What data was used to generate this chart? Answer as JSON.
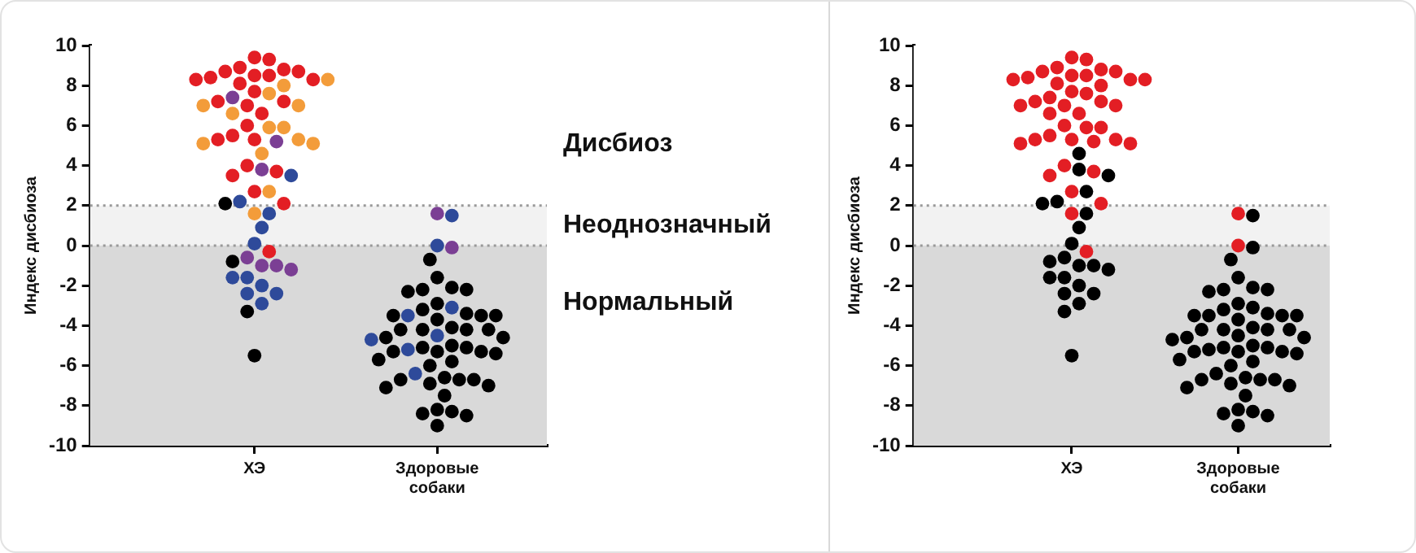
{
  "chart_data": [
    {
      "type": "scatter",
      "ylabel": "Индекс дисбиоза",
      "categories": [
        "ХЭ",
        "Здоровые собаки"
      ],
      "ylim": [
        -10,
        10
      ],
      "yticks": [
        -10,
        -8,
        -6,
        -4,
        -2,
        0,
        2,
        4,
        6,
        8,
        10
      ],
      "marker": "circle",
      "bands": [
        {
          "axis": "y",
          "from": 2,
          "to": 10,
          "label": "Дисбиоз",
          "color": "#ffffff"
        },
        {
          "axis": "y",
          "from": 0,
          "to": 2,
          "label": "Неоднозначный",
          "color": "#f2f2f2"
        },
        {
          "axis": "y",
          "from": -10,
          "to": 0,
          "label": "Нормальный",
          "color": "#d9d9d9"
        }
      ],
      "ref_lines": [
        {
          "axis": "y",
          "value": 2,
          "color": "#999999",
          "line_style": "dotted"
        },
        {
          "axis": "y",
          "value": 0,
          "color": "#999999",
          "line_style": "dotted"
        }
      ],
      "series": [
        {
          "color": "#e31e24",
          "x": [
            "ХЭ",
            "ХЭ",
            "ХЭ",
            "ХЭ",
            "ХЭ",
            "ХЭ",
            "ХЭ",
            "ХЭ",
            "ХЭ",
            "ХЭ",
            "ХЭ",
            "ХЭ",
            "ХЭ",
            "ХЭ",
            "ХЭ",
            "ХЭ",
            "ХЭ",
            "ХЭ",
            "ХЭ",
            "ХЭ",
            "ХЭ",
            "ХЭ",
            "ХЭ",
            "ХЭ",
            "ХЭ",
            "ХЭ",
            "ХЭ"
          ],
          "values": [
            8.9,
            9.4,
            9.3,
            8.8,
            8.7,
            8.7,
            8.3,
            8.3,
            8.5,
            8.5,
            8.4,
            8.1,
            7.7,
            7.2,
            7.2,
            7.0,
            6.6,
            6.0,
            5.3,
            5.5,
            5.3,
            3.7,
            3.5,
            4.0,
            2.7,
            2.1,
            -0.3
          ]
        },
        {
          "color": "#f39c3a",
          "x": [
            "ХЭ",
            "ХЭ",
            "ХЭ",
            "ХЭ",
            "ХЭ",
            "ХЭ",
            "ХЭ",
            "ХЭ",
            "ХЭ",
            "ХЭ",
            "ХЭ",
            "ХЭ",
            "ХЭ",
            "ХЭ"
          ],
          "values": [
            8.3,
            8.0,
            7.6,
            7.0,
            7.0,
            6.6,
            5.9,
            5.9,
            5.1,
            5.3,
            5.1,
            4.6,
            2.7,
            1.6
          ]
        },
        {
          "color": "#7b3f94",
          "x": [
            "ХЭ",
            "ХЭ",
            "ХЭ",
            "ХЭ",
            "ХЭ",
            "ХЭ",
            "ХЭ",
            "Здоровые собаки",
            "Здоровые собаки"
          ],
          "values": [
            7.4,
            5.2,
            3.8,
            -0.6,
            -1.0,
            -1.0,
            -1.2,
            1.6,
            -0.1
          ]
        },
        {
          "color": "#2e4a9a",
          "x": [
            "ХЭ",
            "ХЭ",
            "ХЭ",
            "ХЭ",
            "ХЭ",
            "ХЭ",
            "ХЭ",
            "ХЭ",
            "ХЭ",
            "ХЭ",
            "ХЭ",
            "Здоровые собаки",
            "Здоровые собаки",
            "Здоровые собаки",
            "Здоровые собаки",
            "Здоровые собаки",
            "Здоровые собаки",
            "Здоровые собаки",
            "Здоровые собаки"
          ],
          "values": [
            3.5,
            2.2,
            1.6,
            0.9,
            0.1,
            -1.6,
            -1.6,
            -2.0,
            -2.4,
            -2.4,
            -2.9,
            1.5,
            0.0,
            -3.1,
            -3.5,
            -4.5,
            -4.7,
            -5.2,
            -6.4
          ]
        },
        {
          "color": "#000000",
          "x": [
            "ХЭ",
            "ХЭ",
            "ХЭ",
            "ХЭ",
            "Здоровые собаки",
            "Здоровые собаки",
            "Здоровые собаки",
            "Здоровые собаки",
            "Здоровые собаки",
            "Здоровые собаки",
            "Здоровые собаки",
            "Здоровые собаки",
            "Здоровые собаки",
            "Здоровые собаки",
            "Здоровые собаки",
            "Здоровые собаки",
            "Здоровые собаки",
            "Здоровые собаки",
            "Здоровые собаки",
            "Здоровые собаки",
            "Здоровые собаки",
            "Здоровые собаки",
            "Здоровые собаки",
            "Здоровые собаки",
            "Здоровые собаки",
            "Здоровые собаки",
            "Здоровые собаки",
            "Здоровые собаки",
            "Здоровые собаки",
            "Здоровые собаки",
            "Здоровые собаки",
            "Здоровые собаки",
            "Здоровые собаки",
            "Здоровые собаки",
            "Здоровые собаки",
            "Здоровые собаки",
            "Здоровые собаки",
            "Здоровые собаки",
            "Здоровые собаки",
            "Здоровые собаки",
            "Здоровые собаки",
            "Здоровые собаки",
            "Здоровые собаки",
            "Здоровые собаки",
            "Здоровые собаки",
            "Здоровые собаки",
            "Здоровые собаки"
          ],
          "values": [
            2.1,
            -0.8,
            -3.3,
            -5.5,
            -0.7,
            -1.6,
            -2.1,
            -2.2,
            -2.2,
            -2.3,
            -2.9,
            -3.2,
            -3.4,
            -3.5,
            -3.5,
            -3.5,
            -3.7,
            -4.1,
            -4.2,
            -4.2,
            -4.2,
            -4.2,
            -4.6,
            -4.6,
            -5.0,
            -5.1,
            -5.1,
            -5.3,
            -5.3,
            -5.3,
            -5.4,
            -5.7,
            -5.8,
            -6.0,
            -6.6,
            -6.7,
            -6.7,
            -6.7,
            -6.9,
            -7.0,
            -7.1,
            -7.5,
            -8.2,
            -8.3,
            -8.4,
            -8.5,
            -9.0
          ]
        }
      ]
    },
    {
      "type": "scatter",
      "ylabel": "Индекс дисбиоза",
      "categories": [
        "ХЭ",
        "Здоровые собаки"
      ],
      "ylim": [
        -10,
        10
      ],
      "yticks": [
        -10,
        -8,
        -6,
        -4,
        -2,
        0,
        2,
        4,
        6,
        8,
        10
      ],
      "marker": "circle",
      "bands": [
        {
          "axis": "y",
          "from": 2,
          "to": 10,
          "color": "#ffffff"
        },
        {
          "axis": "y",
          "from": 0,
          "to": 2,
          "color": "#f2f2f2"
        },
        {
          "axis": "y",
          "from": -10,
          "to": 0,
          "color": "#d9d9d9"
        }
      ],
      "ref_lines": [
        {
          "axis": "y",
          "value": 2,
          "color": "#999999",
          "line_style": "dotted"
        },
        {
          "axis": "y",
          "value": 0,
          "color": "#999999",
          "line_style": "dotted"
        }
      ],
      "series": [
        {
          "color": "#e31e24",
          "x": [
            "ХЭ",
            "ХЭ",
            "ХЭ",
            "ХЭ",
            "ХЭ",
            "ХЭ",
            "ХЭ",
            "ХЭ",
            "ХЭ",
            "ХЭ",
            "ХЭ",
            "ХЭ",
            "ХЭ",
            "ХЭ",
            "ХЭ",
            "ХЭ",
            "ХЭ",
            "ХЭ",
            "ХЭ",
            "ХЭ",
            "ХЭ",
            "ХЭ",
            "ХЭ",
            "ХЭ",
            "ХЭ",
            "ХЭ",
            "ХЭ",
            "ХЭ",
            "ХЭ",
            "ХЭ",
            "ХЭ",
            "ХЭ",
            "ХЭ",
            "ХЭ",
            "ХЭ",
            "ХЭ",
            "ХЭ",
            "ХЭ",
            "ХЭ",
            "ХЭ",
            "ХЭ",
            "Здоровые собаки",
            "Здоровые собаки"
          ],
          "values": [
            8.9,
            9.4,
            9.3,
            8.8,
            8.7,
            8.7,
            8.3,
            8.3,
            8.5,
            8.5,
            8.4,
            8.1,
            7.7,
            7.2,
            7.2,
            7.0,
            6.6,
            6.0,
            5.3,
            5.5,
            5.3,
            3.7,
            3.5,
            4.0,
            2.7,
            2.1,
            -0.3,
            8.3,
            8.0,
            7.6,
            7.0,
            7.0,
            6.6,
            5.9,
            5.9,
            5.1,
            5.3,
            5.1,
            1.6,
            7.4,
            5.2,
            1.6,
            0.0
          ]
        },
        {
          "color": "#000000",
          "x": [
            "ХЭ",
            "ХЭ",
            "ХЭ",
            "ХЭ",
            "ХЭ",
            "ХЭ",
            "ХЭ",
            "ХЭ",
            "ХЭ",
            "ХЭ",
            "ХЭ",
            "ХЭ",
            "ХЭ",
            "ХЭ",
            "ХЭ",
            "ХЭ",
            "ХЭ",
            "ХЭ",
            "ХЭ",
            "ХЭ",
            "ХЭ",
            "ХЭ",
            "Здоровые собаки",
            "Здоровые собаки",
            "Здоровые собаки",
            "Здоровые собаки",
            "Здоровые собаки",
            "Здоровые собаки",
            "Здоровые собаки",
            "Здоровые собаки",
            "Здоровые собаки",
            "Здоровые собаки",
            "Здоровые собаки",
            "Здоровые собаки",
            "Здоровые собаки",
            "Здоровые собаки",
            "Здоровые собаки",
            "Здоровые собаки",
            "Здоровые собаки",
            "Здоровые собаки",
            "Здоровые собаки",
            "Здоровые собаки",
            "Здоровые собаки",
            "Здоровые собаки",
            "Здоровые собаки",
            "Здоровые собаки",
            "Здоровые собаки",
            "Здоровые собаки",
            "Здоровые собаки",
            "Здоровые собаки",
            "Здоровые собаки",
            "Здоровые собаки",
            "Здоровые собаки",
            "Здоровые собаки",
            "Здоровые собаки",
            "Здоровые собаки",
            "Здоровые собаки",
            "Здоровые собаки",
            "Здоровые собаки",
            "Здоровые собаки",
            "Здоровые собаки",
            "Здоровые собаки",
            "Здоровые собаки",
            "Здоровые собаки",
            "Здоровые собаки",
            "Здоровые собаки",
            "Здоровые собаки",
            "Здоровые собаки",
            "Здоровые собаки",
            "Здоровые собаки",
            "Здоровые собаки",
            "Здоровые собаки",
            "Здоровые собаки"
          ],
          "values": [
            4.6,
            3.8,
            3.5,
            2.7,
            2.2,
            2.1,
            1.6,
            0.9,
            0.1,
            -0.6,
            -0.8,
            -1.0,
            -1.0,
            -1.2,
            -1.6,
            -1.6,
            -2.0,
            -2.4,
            -2.4,
            -2.9,
            -3.3,
            -5.5,
            1.5,
            -0.1,
            -3.1,
            -3.5,
            -4.5,
            -4.7,
            -5.2,
            -6.4,
            -0.7,
            -1.6,
            -2.1,
            -2.2,
            -2.2,
            -2.3,
            -2.9,
            -3.2,
            -3.4,
            -3.5,
            -3.5,
            -3.5,
            -3.7,
            -4.1,
            -4.2,
            -4.2,
            -4.2,
            -4.2,
            -4.6,
            -4.6,
            -5.0,
            -5.1,
            -5.1,
            -5.3,
            -5.3,
            -5.3,
            -5.4,
            -5.7,
            -5.8,
            -6.0,
            -6.6,
            -6.7,
            -6.7,
            -6.7,
            -6.9,
            -7.0,
            -7.1,
            -7.5,
            -8.2,
            -8.3,
            -8.4,
            -8.5,
            -9.0
          ]
        }
      ]
    }
  ]
}
